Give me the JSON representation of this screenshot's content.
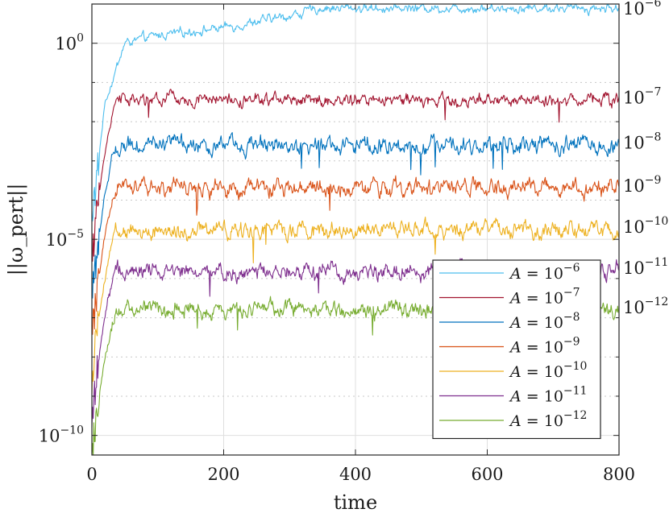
{
  "chart_data": {
    "type": "line",
    "title": "",
    "xlabel": "time",
    "ylabel": "||ω_pert||",
    "xlim": [
      0,
      800
    ],
    "ylim_log10": [
      -10.5,
      1
    ],
    "xticks": [
      0,
      200,
      400,
      600,
      800
    ],
    "xtick_labels": [
      "0",
      "200",
      "400",
      "600",
      "800"
    ],
    "yticks_log10": [
      0,
      -5,
      -10
    ],
    "ytick_labels": [
      {
        "base": "10",
        "exp": "0"
      },
      {
        "base": "10",
        "exp": "−5"
      },
      {
        "base": "10",
        "exp": "−10"
      }
    ],
    "minor_gridlines_log10": [
      -1,
      -2,
      -3,
      -4,
      -6,
      -7,
      -8,
      -9
    ],
    "grid": true,
    "legend_position": "bottom-right",
    "series": [
      {
        "name": "A = 10^-6",
        "base": "10",
        "exp": "−6",
        "amplitude_log10": -6,
        "color": "#4DBEEE",
        "start_log10": -4.5,
        "saturation_log10": 0.9,
        "growth_time": 30,
        "oscillation_log10": 0.25,
        "time": [
          0,
          20,
          50,
          100,
          200,
          300,
          350,
          400,
          500,
          600,
          700,
          800
        ],
        "log10_norm": [
          -4.5,
          -1.5,
          0.0,
          0.2,
          0.4,
          0.7,
          0.9,
          0.9,
          0.9,
          0.9,
          0.9,
          0.9
        ]
      },
      {
        "name": "A = 10^-7",
        "base": "10",
        "exp": "−7",
        "amplitude_log10": -7,
        "color": "#A2142F",
        "start_log10": -5.5,
        "saturation_log10": -1.45,
        "growth_time": 40,
        "oscillation_log10": 0.35
      },
      {
        "name": "A = 10^-8",
        "base": "10",
        "exp": "−8",
        "amplitude_log10": -8,
        "color": "#0072BD",
        "start_log10": -6.5,
        "saturation_log10": -2.6,
        "growth_time": 40,
        "oscillation_log10": 0.45
      },
      {
        "name": "A = 10^-9",
        "base": "10",
        "exp": "−9",
        "amplitude_log10": -9,
        "color": "#D95319",
        "start_log10": -7.5,
        "saturation_log10": -3.7,
        "growth_time": 40,
        "oscillation_log10": 0.45
      },
      {
        "name": "A = 10^-10",
        "base": "10",
        "exp": "−10",
        "amplitude_log10": -10,
        "color": "#EDB120",
        "start_log10": -8.5,
        "saturation_log10": -4.75,
        "growth_time": 40,
        "oscillation_log10": 0.45
      },
      {
        "name": "A = 10^-11",
        "base": "10",
        "exp": "−11",
        "amplitude_log10": -11,
        "color": "#7E2F8E",
        "start_log10": -9.5,
        "saturation_log10": -5.8,
        "growth_time": 40,
        "oscillation_log10": 0.45
      },
      {
        "name": "A = 10^-12",
        "base": "10",
        "exp": "−12",
        "amplitude_log10": -12,
        "color": "#77AC30",
        "start_log10": -10.5,
        "saturation_log10": -6.8,
        "growth_time": 40,
        "oscillation_log10": 0.45
      }
    ],
    "right_labels": [
      {
        "base": "10",
        "exp": "−6"
      },
      {
        "base": "10",
        "exp": "−7"
      },
      {
        "base": "10",
        "exp": "−8"
      },
      {
        "base": "10",
        "exp": "−9"
      },
      {
        "base": "10",
        "exp": "−10"
      },
      {
        "base": "10",
        "exp": "−11"
      },
      {
        "base": "10",
        "exp": "−12"
      }
    ]
  }
}
